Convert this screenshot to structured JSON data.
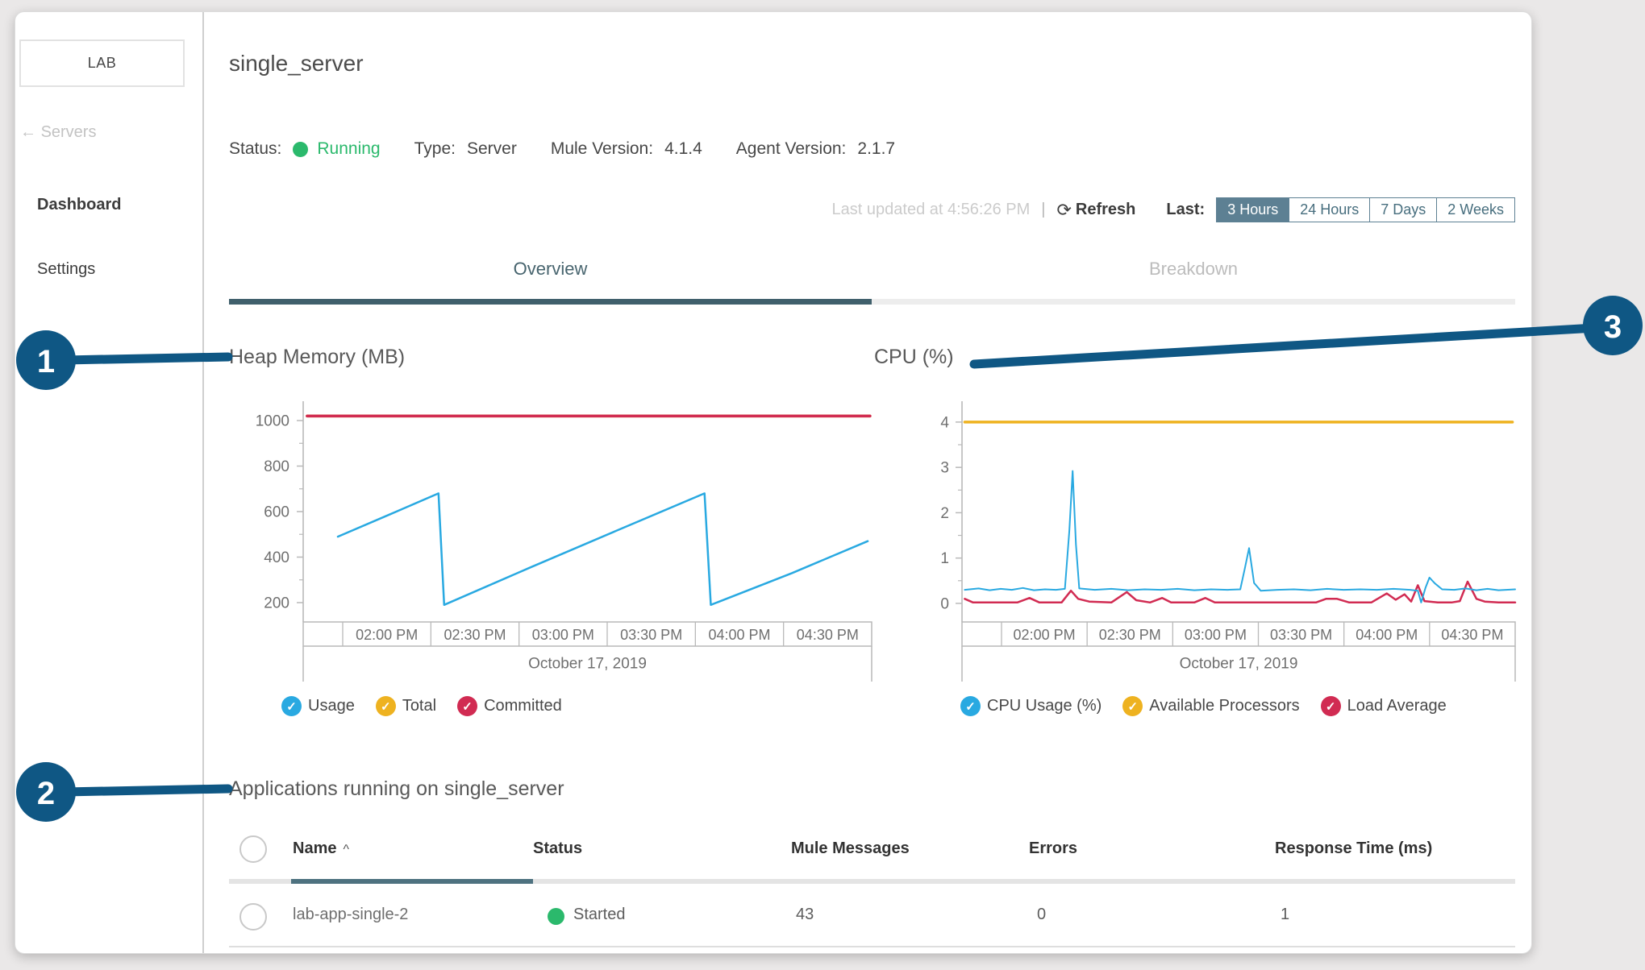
{
  "sidebar": {
    "env_label": "LAB",
    "back_arrow": "←",
    "back_link": "Servers",
    "items": [
      {
        "label": "Dashboard"
      },
      {
        "label": "Settings"
      }
    ]
  },
  "header": {
    "title": "single_server",
    "status_label": "Status:",
    "status_value": "Running",
    "type_label": "Type:",
    "type_value": "Server",
    "mule_version_label": "Mule Version:",
    "mule_version_value": "4.1.4",
    "agent_version_label": "Agent Version:",
    "agent_version_value": "2.1.7"
  },
  "toolbar": {
    "last_updated": "Last updated at 4:56:26 PM",
    "separator": "|",
    "refresh_icon": "⟳",
    "refresh_label": "Refresh",
    "last_label": "Last:",
    "ranges": [
      "3 Hours",
      "24 Hours",
      "7 Days",
      "2 Weeks"
    ],
    "selected_range": "3 Hours"
  },
  "tabs": [
    {
      "label": "Overview",
      "active": true
    },
    {
      "label": "Breakdown",
      "active": false
    }
  ],
  "annotations": [
    {
      "label": "1"
    },
    {
      "label": "2"
    },
    {
      "label": "3"
    }
  ],
  "colors": {
    "callout_blue": "#0f5784",
    "series_blue": "#29a9e1",
    "series_yellow": "#eeb220",
    "series_red": "#d12b52",
    "green": "#2bb96c",
    "tab_dark": "#40606c",
    "range_selected_bg": "#5d8093",
    "sort_underline": "#4e7280"
  },
  "chart_data": [
    {
      "type": "line",
      "title": "Heap Memory (MB)",
      "ylim": [
        115,
        1085
      ],
      "y_ticks": [
        1000,
        800,
        600,
        400,
        200
      ],
      "y_minor_ticks": [
        900,
        700,
        500,
        300
      ],
      "x_tick_labels": [
        "02:00 PM",
        "02:30 PM",
        "03:00 PM",
        "03:30 PM",
        "04:00 PM",
        "04:30 PM"
      ],
      "date_label": "October 17, 2019",
      "legend_position": "bottom",
      "grid": false,
      "series": [
        {
          "name": "Usage",
          "color": "#29a9e1",
          "width": 2.5,
          "points": [
            [
              0.061,
              490
            ],
            [
              0.15,
              585
            ],
            [
              0.238,
              680
            ],
            [
              0.248,
              190
            ],
            [
              0.4,
              355
            ],
            [
              0.55,
              515
            ],
            [
              0.706,
              680
            ],
            [
              0.717,
              190
            ],
            [
              0.86,
              330
            ],
            [
              0.993,
              470
            ]
          ]
        },
        {
          "name": "Total",
          "color": "#eeb220",
          "width": 3.5,
          "points": [
            [
              0.007,
              1020
            ],
            [
              0.997,
              1020
            ]
          ]
        },
        {
          "name": "Committed",
          "color": "#d12b52",
          "width": 3.5,
          "points": [
            [
              0.007,
              1020
            ],
            [
              0.997,
              1020
            ]
          ]
        }
      ]
    },
    {
      "type": "line",
      "title": "CPU (%)",
      "ylim": [
        -0.41,
        4.46
      ],
      "y_ticks": [
        4,
        3,
        2,
        1,
        0
      ],
      "y_minor_ticks": [
        3.5,
        2.5,
        1.5,
        0.5
      ],
      "x_tick_labels": [
        "02:00 PM",
        "02:30 PM",
        "03:00 PM",
        "03:30 PM",
        "04:00 PM",
        "04:30 PM"
      ],
      "date_label": "October 17, 2019",
      "legend_position": "bottom",
      "grid": false,
      "series": [
        {
          "name": "CPU Usage (%)",
          "color": "#29a9e1",
          "width": 2,
          "points": [
            [
              0.005,
              0.3
            ],
            [
              0.03,
              0.33
            ],
            [
              0.05,
              0.29
            ],
            [
              0.07,
              0.32
            ],
            [
              0.09,
              0.3
            ],
            [
              0.11,
              0.34
            ],
            [
              0.13,
              0.29
            ],
            [
              0.15,
              0.31
            ],
            [
              0.17,
              0.3
            ],
            [
              0.186,
              0.32
            ],
            [
              0.194,
              1.6
            ],
            [
              0.2,
              2.92
            ],
            [
              0.206,
              1.3
            ],
            [
              0.212,
              0.33
            ],
            [
              0.24,
              0.3
            ],
            [
              0.27,
              0.32
            ],
            [
              0.3,
              0.29
            ],
            [
              0.33,
              0.31
            ],
            [
              0.36,
              0.3
            ],
            [
              0.39,
              0.32
            ],
            [
              0.42,
              0.29
            ],
            [
              0.45,
              0.31
            ],
            [
              0.48,
              0.3
            ],
            [
              0.503,
              0.31
            ],
            [
              0.511,
              0.75
            ],
            [
              0.519,
              1.22
            ],
            [
              0.528,
              0.45
            ],
            [
              0.54,
              0.28
            ],
            [
              0.57,
              0.3
            ],
            [
              0.6,
              0.31
            ],
            [
              0.63,
              0.29
            ],
            [
              0.66,
              0.32
            ],
            [
              0.69,
              0.3
            ],
            [
              0.72,
              0.31
            ],
            [
              0.75,
              0.3
            ],
            [
              0.78,
              0.32
            ],
            [
              0.81,
              0.3
            ],
            [
              0.824,
              0.28
            ],
            [
              0.83,
              0.02
            ],
            [
              0.838,
              0.35
            ],
            [
              0.845,
              0.57
            ],
            [
              0.855,
              0.44
            ],
            [
              0.868,
              0.31
            ],
            [
              0.89,
              0.3
            ],
            [
              0.91,
              0.33
            ],
            [
              0.93,
              0.29
            ],
            [
              0.95,
              0.32
            ],
            [
              0.97,
              0.29
            ],
            [
              1.0,
              0.31
            ]
          ]
        },
        {
          "name": "Available Processors",
          "color": "#eeb220",
          "width": 3.5,
          "points": [
            [
              0.005,
              4
            ],
            [
              0.995,
              4
            ]
          ]
        },
        {
          "name": "Load Average",
          "color": "#d12b52",
          "width": 2.5,
          "points": [
            [
              0.005,
              0.1
            ],
            [
              0.02,
              0.02
            ],
            [
              0.06,
              0.02
            ],
            [
              0.1,
              0.02
            ],
            [
              0.122,
              0.12
            ],
            [
              0.14,
              0.02
            ],
            [
              0.18,
              0.02
            ],
            [
              0.197,
              0.28
            ],
            [
              0.21,
              0.1
            ],
            [
              0.23,
              0.04
            ],
            [
              0.27,
              0.02
            ],
            [
              0.298,
              0.25
            ],
            [
              0.315,
              0.07
            ],
            [
              0.34,
              0.02
            ],
            [
              0.362,
              0.12
            ],
            [
              0.378,
              0.02
            ],
            [
              0.42,
              0.02
            ],
            [
              0.44,
              0.12
            ],
            [
              0.457,
              0.02
            ],
            [
              0.52,
              0.02
            ],
            [
              0.56,
              0.02
            ],
            [
              0.6,
              0.02
            ],
            [
              0.64,
              0.02
            ],
            [
              0.658,
              0.1
            ],
            [
              0.678,
              0.1
            ],
            [
              0.7,
              0.02
            ],
            [
              0.74,
              0.02
            ],
            [
              0.768,
              0.22
            ],
            [
              0.784,
              0.08
            ],
            [
              0.8,
              0.2
            ],
            [
              0.812,
              0.04
            ],
            [
              0.824,
              0.4
            ],
            [
              0.836,
              0.05
            ],
            [
              0.86,
              0.02
            ],
            [
              0.885,
              0.02
            ],
            [
              0.9,
              0.05
            ],
            [
              0.914,
              0.48
            ],
            [
              0.93,
              0.1
            ],
            [
              0.945,
              0.04
            ],
            [
              0.97,
              0.02
            ],
            [
              1.0,
              0.02
            ]
          ]
        }
      ]
    }
  ],
  "applications": {
    "heading": "Applications running on single_server",
    "sort_caret": "^",
    "columns": [
      "Name",
      "Status",
      "Mule Messages",
      "Errors",
      "Response Time (ms)"
    ],
    "rows": [
      {
        "name": "lab-app-single-2",
        "status": "Started",
        "mule_messages": "43",
        "errors": "0",
        "response_time": "1"
      }
    ]
  }
}
